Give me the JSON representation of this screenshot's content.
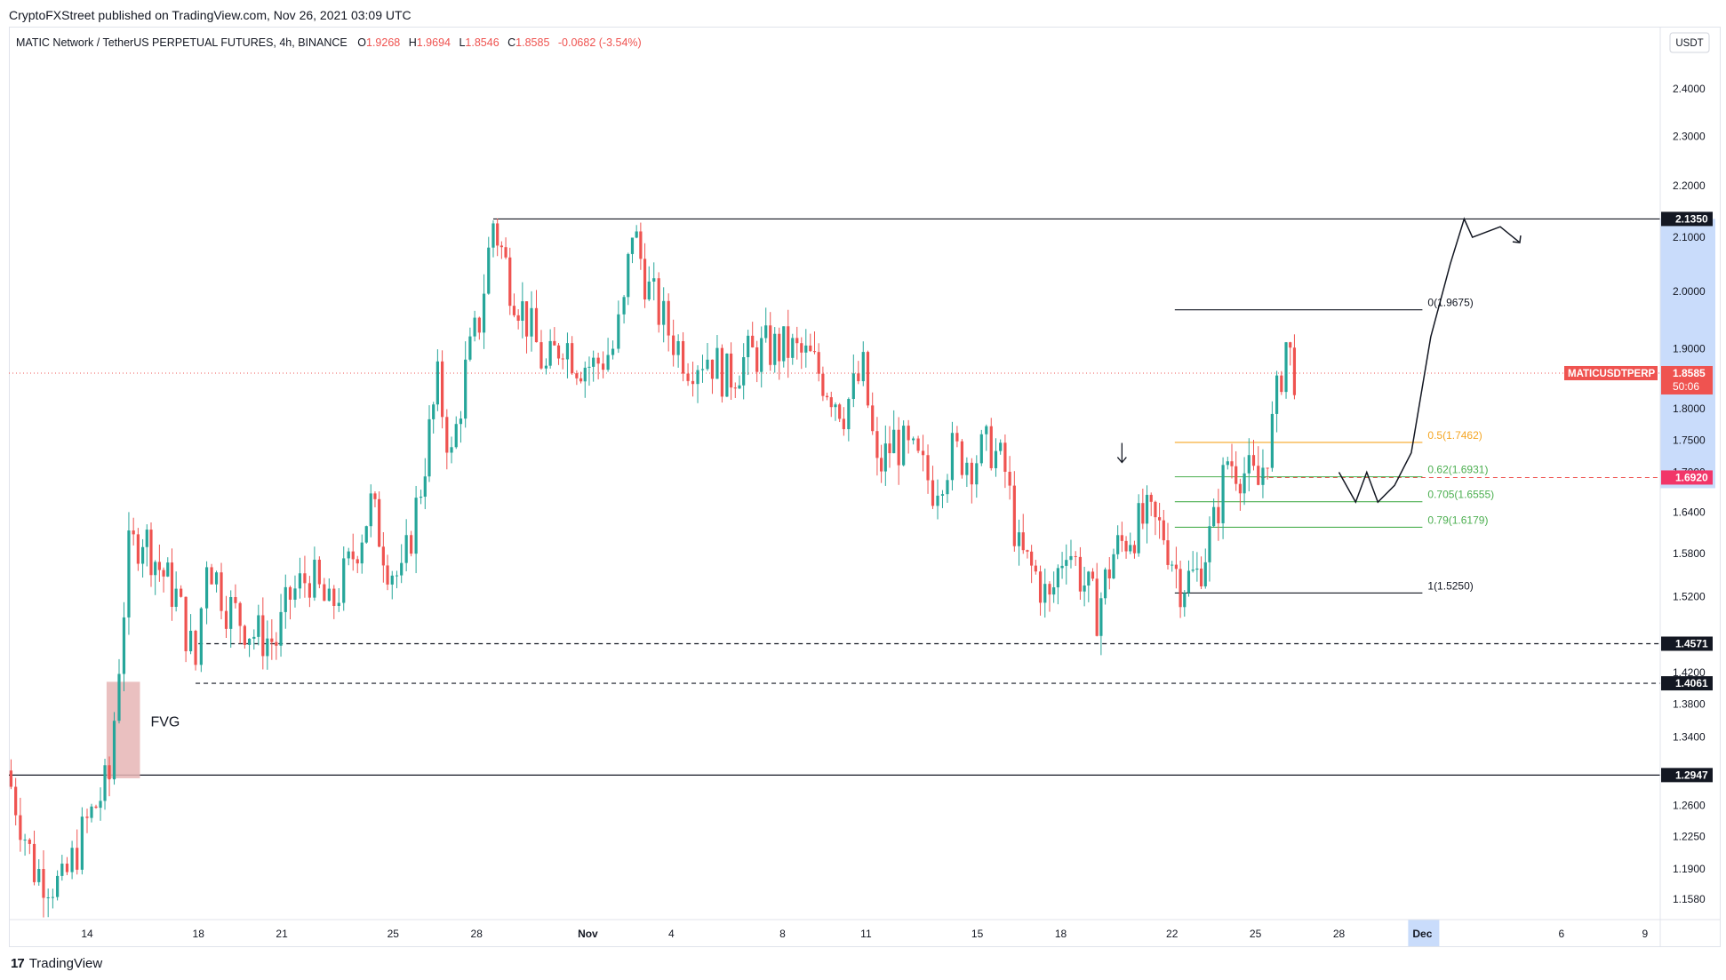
{
  "publish_info": "CryptoFXStreet published on TradingView.com, Nov 26, 2021 03:09 UTC",
  "header": {
    "symbol": "MATIC Network / TetherUS PERPETUAL FUTURES, 4h, BINANCE",
    "o_label": "O",
    "o_value": "1.9268",
    "h_label": "H",
    "h_value": "1.9694",
    "l_label": "L",
    "l_value": "1.8546",
    "c_label": "C",
    "c_value": "1.8585",
    "change": "-0.0682 (-3.54%)"
  },
  "footer": {
    "logo_text": "TradingView"
  },
  "colors": {
    "up": "#26a69a",
    "down": "#ef5350",
    "fib05": "#f5a623",
    "fib_green": "#4caf50",
    "current": "#ef5350",
    "highlight": "#c9dcfb"
  },
  "chart_data": {
    "type": "candlestick",
    "currency": "USDT",
    "y_range": [
      1.13,
      2.47
    ],
    "y_ticks": [
      "2.4000",
      "2.3000",
      "2.2000",
      "2.1000",
      "2.0000",
      "1.9000",
      "1.8000",
      "1.7500",
      "1.7000",
      "1.6400",
      "1.5800",
      "1.5200",
      "1.4200",
      "1.3800",
      "1.3400",
      "1.2600",
      "1.2250",
      "1.1900",
      "1.1580"
    ],
    "x_ticks": [
      {
        "label": "14",
        "day": 14
      },
      {
        "label": "18",
        "day": 18
      },
      {
        "label": "21",
        "day": 21
      },
      {
        "label": "25",
        "day": 25
      },
      {
        "label": "28",
        "day": 28
      },
      {
        "label": "Nov",
        "day": 32
      },
      {
        "label": "4",
        "day": 35
      },
      {
        "label": "8",
        "day": 39
      },
      {
        "label": "11",
        "day": 42
      },
      {
        "label": "15",
        "day": 46
      },
      {
        "label": "18",
        "day": 49
      },
      {
        "label": "22",
        "day": 53
      },
      {
        "label": "25",
        "day": 56
      },
      {
        "label": "28",
        "day": 59
      },
      {
        "label": "Dec",
        "day": 62
      },
      {
        "label": "6",
        "day": 67
      },
      {
        "label": "9",
        "day": 70
      }
    ],
    "key_points": [
      {
        "day": 11.1,
        "price": 1.3
      },
      {
        "day": 12.1,
        "price": 1.19
      },
      {
        "day": 13.1,
        "price": 1.17
      },
      {
        "day": 14.0,
        "price": 1.24
      },
      {
        "day": 14.8,
        "price": 1.29
      },
      {
        "day": 15.5,
        "price": 1.58
      },
      {
        "day": 16.0,
        "price": 1.61
      },
      {
        "day": 16.6,
        "price": 1.56
      },
      {
        "day": 17.2,
        "price": 1.52
      },
      {
        "day": 17.9,
        "price": 1.43
      },
      {
        "day": 18.3,
        "price": 1.58
      },
      {
        "day": 19.0,
        "price": 1.51
      },
      {
        "day": 20.0,
        "price": 1.47
      },
      {
        "day": 20.8,
        "price": 1.46
      },
      {
        "day": 21.3,
        "price": 1.52
      },
      {
        "day": 22.0,
        "price": 1.55
      },
      {
        "day": 22.7,
        "price": 1.5
      },
      {
        "day": 23.4,
        "price": 1.56
      },
      {
        "day": 24.2,
        "price": 1.65
      },
      {
        "day": 24.8,
        "price": 1.57
      },
      {
        "day": 25.3,
        "price": 1.54
      },
      {
        "day": 26.0,
        "price": 1.68
      },
      {
        "day": 26.6,
        "price": 1.84
      },
      {
        "day": 27.1,
        "price": 1.72
      },
      {
        "day": 27.6,
        "price": 1.86
      },
      {
        "day": 28.1,
        "price": 1.95
      },
      {
        "day": 28.6,
        "price": 2.13
      },
      {
        "day": 29.2,
        "price": 2.02
      },
      {
        "day": 29.8,
        "price": 1.95
      },
      {
        "day": 30.5,
        "price": 1.86
      },
      {
        "day": 31.1,
        "price": 1.92
      },
      {
        "day": 31.6,
        "price": 1.88
      },
      {
        "day": 32.2,
        "price": 1.87
      },
      {
        "day": 32.9,
        "price": 1.9
      },
      {
        "day": 33.3,
        "price": 1.97
      },
      {
        "day": 33.6,
        "price": 2.12
      },
      {
        "day": 34.2,
        "price": 2.0
      },
      {
        "day": 34.9,
        "price": 1.93
      },
      {
        "day": 35.6,
        "price": 1.88
      },
      {
        "day": 36.3,
        "price": 1.89
      },
      {
        "day": 37.0,
        "price": 1.85
      },
      {
        "day": 37.6,
        "price": 1.88
      },
      {
        "day": 38.4,
        "price": 1.9
      },
      {
        "day": 39.2,
        "price": 1.9
      },
      {
        "day": 40.0,
        "price": 1.88
      },
      {
        "day": 40.6,
        "price": 1.84
      },
      {
        "day": 41.2,
        "price": 1.8
      },
      {
        "day": 41.9,
        "price": 1.86
      },
      {
        "day": 42.4,
        "price": 1.7
      },
      {
        "day": 43.0,
        "price": 1.75
      },
      {
        "day": 43.7,
        "price": 1.72
      },
      {
        "day": 44.4,
        "price": 1.68
      },
      {
        "day": 45.1,
        "price": 1.73
      },
      {
        "day": 45.8,
        "price": 1.72
      },
      {
        "day": 46.5,
        "price": 1.74
      },
      {
        "day": 47.0,
        "price": 1.7
      },
      {
        "day": 47.5,
        "price": 1.58
      },
      {
        "day": 48.1,
        "price": 1.55
      },
      {
        "day": 48.6,
        "price": 1.51
      },
      {
        "day": 49.2,
        "price": 1.6
      },
      {
        "day": 49.7,
        "price": 1.55
      },
      {
        "day": 50.3,
        "price": 1.5
      },
      {
        "day": 50.9,
        "price": 1.58
      },
      {
        "day": 51.5,
        "price": 1.61
      },
      {
        "day": 52.1,
        "price": 1.63
      },
      {
        "day": 52.7,
        "price": 1.61
      },
      {
        "day": 53.3,
        "price": 1.54
      },
      {
        "day": 53.9,
        "price": 1.55
      },
      {
        "day": 54.5,
        "price": 1.62
      },
      {
        "day": 55.0,
        "price": 1.72
      },
      {
        "day": 55.6,
        "price": 1.7
      },
      {
        "day": 56.1,
        "price": 1.68
      },
      {
        "day": 56.6,
        "price": 1.77
      },
      {
        "day": 57.1,
        "price": 1.91
      },
      {
        "day": 57.4,
        "price": 1.86
      }
    ],
    "levels": [
      {
        "value": 2.135,
        "label": "2.1350",
        "style": "solid"
      },
      {
        "value": 1.4571,
        "label": "1.4571",
        "style": "dashed"
      },
      {
        "value": 1.4061,
        "label": "1.4061",
        "style": "dashed"
      },
      {
        "value": 1.2947,
        "label": "1.2947",
        "style": "solid"
      }
    ],
    "current_price": {
      "value": 1.8585,
      "symbol": "MATICUSDTPERP",
      "label": "1.8585",
      "countdown": "50:06"
    },
    "alert_level": {
      "value": 1.692,
      "label": "1.6920"
    },
    "fib_levels": [
      {
        "value": 1.9675,
        "label": "0(1.9675)"
      },
      {
        "value": 1.7462,
        "label": "0.5(1.7462)"
      },
      {
        "value": 1.6931,
        "label": "0.62(1.6931)"
      },
      {
        "value": 1.6555,
        "label": "0.705(1.6555)"
      },
      {
        "value": 1.6179,
        "label": "0.79(1.6179)"
      },
      {
        "value": 1.525,
        "label": "1(1.5250)"
      }
    ],
    "annotations": {
      "fvg_label": "FVG",
      "fvg_box": {
        "day_start": 14.7,
        "day_end": 15.9,
        "price_top": 1.408,
        "price_bottom": 1.291
      },
      "arrow_day": 51.2,
      "arrow_price": 1.715
    },
    "projection_path": [
      [
        59.0,
        1.7
      ],
      [
        59.6,
        1.655
      ],
      [
        60.0,
        1.7
      ],
      [
        60.4,
        1.655
      ],
      [
        61.0,
        1.68
      ],
      [
        61.6,
        1.73
      ],
      [
        62.3,
        1.92
      ],
      [
        63.0,
        2.05
      ],
      [
        63.5,
        2.135
      ],
      [
        63.8,
        2.1
      ],
      [
        64.8,
        2.12
      ],
      [
        65.5,
        2.09
      ]
    ],
    "projection_end_arrow": true
  }
}
